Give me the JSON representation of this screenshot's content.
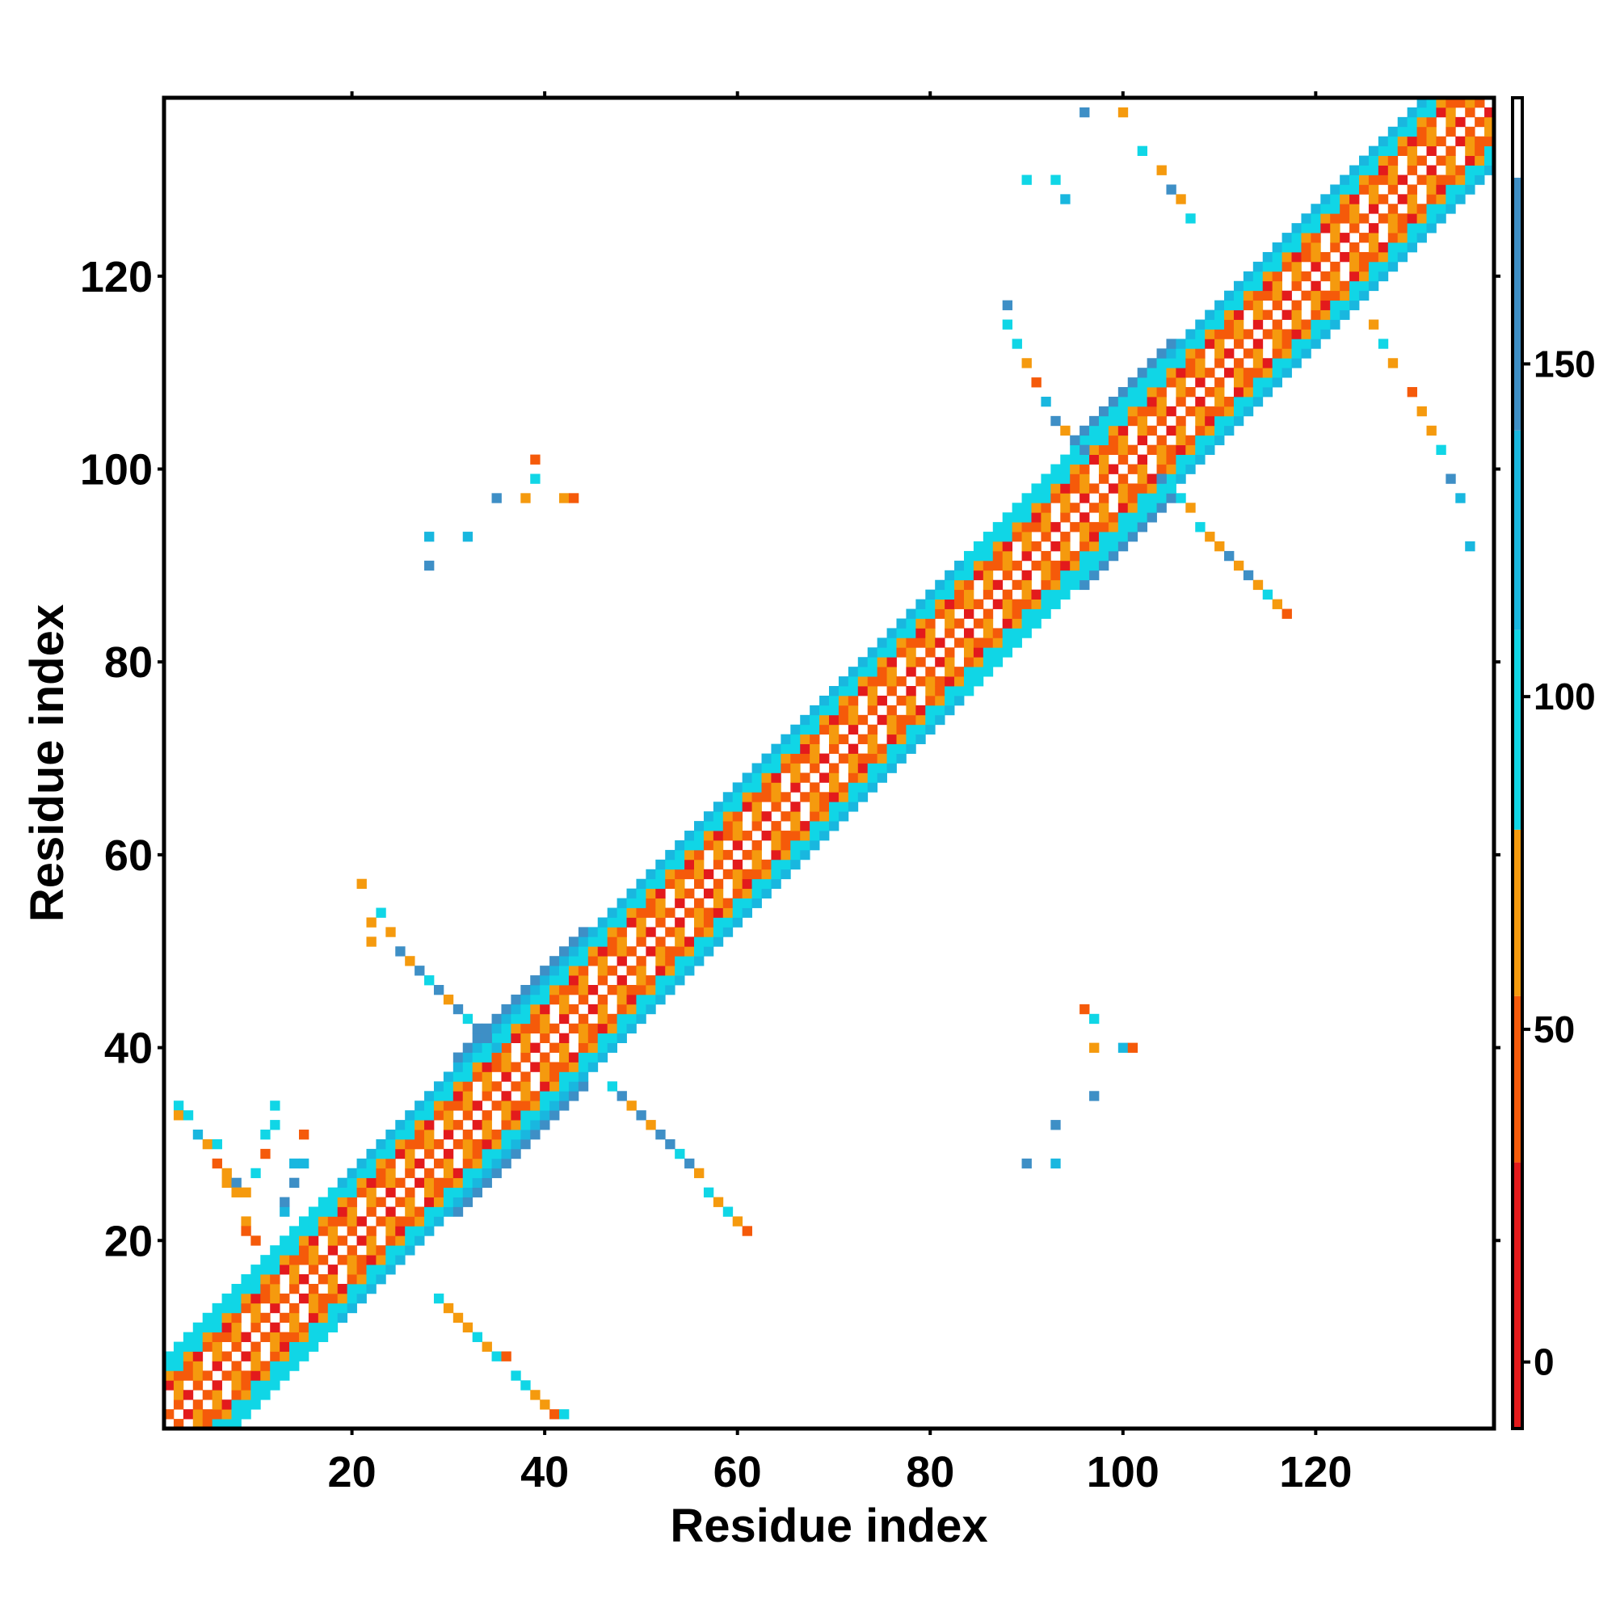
{
  "chart_data": {
    "type": "heatmap",
    "xlabel": "Residue index",
    "ylabel": "Residue index",
    "xlim": [
      1,
      138
    ],
    "ylim": [
      1,
      138
    ],
    "xticks": [
      20,
      40,
      60,
      80,
      100,
      120
    ],
    "yticks": [
      20,
      40,
      60,
      80,
      100,
      120
    ],
    "colorbar": {
      "range": [
        -10,
        190
      ],
      "ticks": [
        0,
        50,
        100,
        150
      ],
      "segments": [
        {
          "from": -10,
          "to": 30,
          "color": "#e31a1c"
        },
        {
          "from": 30,
          "to": 55,
          "color": "#f55a0a"
        },
        {
          "from": 55,
          "to": 80,
          "color": "#f59a0e"
        },
        {
          "from": 80,
          "to": 110,
          "color": "#10d6e6"
        },
        {
          "from": 110,
          "to": 140,
          "color": "#19b7df"
        },
        {
          "from": 140,
          "to": 178,
          "color": "#3e8fc6"
        },
        {
          "from": 178,
          "to": 190,
          "color": "#ffffff"
        }
      ]
    },
    "diagonal_band": {
      "ranges": [
        [
          1,
          18
        ],
        [
          18,
          35
        ],
        [
          35,
          56
        ],
        [
          56,
          84
        ],
        [
          84,
          100
        ],
        [
          100,
          138
        ]
      ],
      "description_free": true
    },
    "cells": [
      [
        9,
        25,
        60
      ],
      [
        10,
        27,
        85
      ],
      [
        11,
        29,
        40
      ],
      [
        11,
        31,
        90
      ],
      [
        12,
        32,
        100
      ],
      [
        12,
        34,
        100
      ],
      [
        13,
        23,
        110
      ],
      [
        13,
        24,
        150
      ],
      [
        14,
        26,
        150
      ],
      [
        14,
        28,
        110
      ],
      [
        15,
        28,
        115
      ],
      [
        15,
        31,
        40
      ],
      [
        2,
        34,
        100
      ],
      [
        2,
        33,
        60
      ],
      [
        3,
        33,
        90
      ],
      [
        4,
        31,
        110
      ],
      [
        5,
        30,
        60
      ],
      [
        6,
        30,
        100
      ],
      [
        6,
        28,
        40
      ],
      [
        7,
        27,
        60
      ],
      [
        7,
        26,
        70
      ],
      [
        8,
        26,
        140
      ],
      [
        8,
        25,
        60
      ],
      [
        9,
        22,
        70
      ],
      [
        9,
        21,
        50
      ],
      [
        10,
        20,
        40
      ],
      [
        29,
        14,
        90
      ],
      [
        30,
        13,
        60
      ],
      [
        31,
        12,
        70
      ],
      [
        32,
        11,
        60
      ],
      [
        33,
        10,
        90
      ],
      [
        34,
        9,
        60
      ],
      [
        35,
        8,
        90
      ],
      [
        36,
        8,
        40
      ],
      [
        37,
        6,
        100
      ],
      [
        38,
        5,
        90
      ],
      [
        39,
        4,
        60
      ],
      [
        40,
        3,
        60
      ],
      [
        41,
        2,
        40
      ],
      [
        42,
        2,
        90
      ],
      [
        21,
        57,
        60
      ],
      [
        22,
        53,
        70
      ],
      [
        22,
        51,
        60
      ],
      [
        23,
        54,
        90
      ],
      [
        24,
        52,
        60
      ],
      [
        25,
        50,
        140
      ],
      [
        26,
        49,
        60
      ],
      [
        27,
        48,
        150
      ],
      [
        28,
        47,
        100
      ],
      [
        29,
        46,
        150
      ],
      [
        30,
        45,
        60
      ],
      [
        31,
        44,
        140
      ],
      [
        32,
        43,
        90
      ],
      [
        33,
        42,
        140
      ],
      [
        34,
        41,
        150
      ],
      [
        35,
        40,
        110
      ],
      [
        47,
        36,
        100
      ],
      [
        48,
        35,
        150
      ],
      [
        49,
        34,
        60
      ],
      [
        50,
        33,
        140
      ],
      [
        51,
        32,
        60
      ],
      [
        52,
        31,
        150
      ],
      [
        53,
        30,
        140
      ],
      [
        54,
        29,
        90
      ],
      [
        55,
        28,
        150
      ],
      [
        56,
        27,
        60
      ],
      [
        57,
        25,
        100
      ],
      [
        58,
        24,
        60
      ],
      [
        59,
        23,
        90
      ],
      [
        60,
        22,
        60
      ],
      [
        61,
        21,
        40
      ],
      [
        28,
        93,
        130
      ],
      [
        28,
        90,
        140
      ],
      [
        32,
        93,
        120
      ],
      [
        35,
        97,
        140
      ],
      [
        38,
        97,
        60
      ],
      [
        39,
        101,
        40
      ],
      [
        39,
        99,
        100
      ],
      [
        42,
        97,
        60
      ],
      [
        43,
        97,
        40
      ],
      [
        88,
        117,
        140
      ],
      [
        88,
        115,
        90
      ],
      [
        89,
        113,
        100
      ],
      [
        90,
        111,
        60
      ],
      [
        91,
        109,
        40
      ],
      [
        92,
        107,
        110
      ],
      [
        93,
        105,
        140
      ],
      [
        94,
        104,
        60
      ],
      [
        95,
        103,
        150
      ],
      [
        96,
        102,
        140
      ],
      [
        104,
        99,
        150
      ],
      [
        105,
        98,
        100
      ],
      [
        106,
        97,
        90
      ],
      [
        107,
        96,
        60
      ],
      [
        108,
        94,
        100
      ],
      [
        109,
        93,
        60
      ],
      [
        110,
        92,
        70
      ],
      [
        111,
        91,
        150
      ],
      [
        112,
        90,
        60
      ],
      [
        113,
        89,
        140
      ],
      [
        114,
        88,
        60
      ],
      [
        115,
        87,
        100
      ],
      [
        116,
        86,
        60
      ],
      [
        117,
        85,
        40
      ],
      [
        90,
        130,
        90
      ],
      [
        93,
        130,
        90
      ],
      [
        94,
        128,
        110
      ],
      [
        96,
        137,
        140
      ],
      [
        100,
        137,
        60
      ],
      [
        102,
        133,
        90
      ],
      [
        104,
        131,
        60
      ],
      [
        105,
        129,
        140
      ],
      [
        106,
        128,
        70
      ],
      [
        107,
        126,
        90
      ],
      [
        126,
        115,
        60
      ],
      [
        127,
        113,
        90
      ],
      [
        128,
        111,
        60
      ],
      [
        130,
        108,
        40
      ],
      [
        131,
        106,
        70
      ],
      [
        132,
        104,
        60
      ],
      [
        133,
        102,
        90
      ],
      [
        134,
        99,
        140
      ],
      [
        135,
        97,
        120
      ],
      [
        136,
        92,
        110
      ],
      [
        96,
        44,
        40
      ],
      [
        97,
        43,
        90
      ],
      [
        97,
        40,
        60
      ],
      [
        100,
        40,
        110
      ],
      [
        101,
        40,
        40
      ],
      [
        97,
        35,
        140
      ],
      [
        93,
        32,
        140
      ],
      [
        90,
        28,
        140
      ],
      [
        93,
        28,
        110
      ]
    ]
  }
}
